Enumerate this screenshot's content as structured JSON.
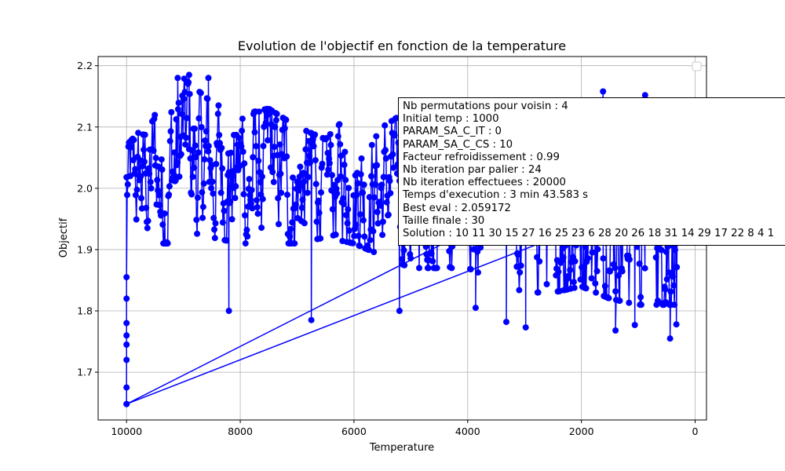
{
  "chart_data": {
    "type": "line",
    "title": "Evolution de l'objectif en fonction de la temperature",
    "xlabel": "Temperature",
    "ylabel": "Objectif",
    "xlim": [
      10500,
      -200
    ],
    "ylim": [
      1.622,
      2.215
    ],
    "x_inverted": true,
    "grid": true,
    "marker": "circle",
    "xticks": [
      10000,
      8000,
      6000,
      4000,
      2000,
      0
    ],
    "yticks": [
      1.7,
      1.8,
      1.9,
      2.0,
      2.1,
      2.2
    ],
    "series": [
      {
        "color": "#0000ff",
        "x_start": 10000,
        "x_end": 300,
        "samples": 900,
        "band": [
          [
            10000,
            1.92,
            2.06
          ],
          [
            9500,
            1.92,
            2.11
          ],
          [
            9000,
            1.92,
            2.17
          ],
          [
            8500,
            1.93,
            2.13
          ],
          [
            8000,
            1.92,
            2.11
          ],
          [
            7500,
            1.92,
            2.12
          ],
          [
            7000,
            1.92,
            2.09
          ],
          [
            6500,
            1.93,
            2.07
          ],
          [
            6000,
            1.92,
            2.12
          ],
          [
            5500,
            1.9,
            2.09
          ],
          [
            5000,
            1.88,
            2.12
          ],
          [
            4500,
            1.88,
            2.13
          ],
          [
            4000,
            1.88,
            2.13
          ],
          [
            3500,
            1.86,
            2.08
          ],
          [
            3000,
            1.84,
            2.12
          ],
          [
            2500,
            1.84,
            2.1
          ],
          [
            2000,
            1.85,
            2.12
          ],
          [
            1500,
            1.83,
            2.14
          ],
          [
            1000,
            1.82,
            2.12
          ],
          [
            500,
            1.82,
            2.09
          ],
          [
            300,
            1.82,
            2.0
          ]
        ],
        "outliers": [
          [
            10000,
            1.648
          ],
          [
            10000,
            1.675
          ],
          [
            10000,
            1.72
          ],
          [
            10000,
            1.745
          ],
          [
            10000,
            1.76
          ],
          [
            10000,
            1.78
          ],
          [
            10000,
            1.82
          ],
          [
            10000,
            1.855
          ],
          [
            9100,
            2.18
          ],
          [
            8900,
            2.185
          ],
          [
            8560,
            2.18
          ],
          [
            8200,
            1.8
          ],
          [
            6750,
            1.785
          ],
          [
            5200,
            1.8
          ],
          [
            3860,
            1.805
          ],
          [
            3320,
            1.782
          ],
          [
            2980,
            1.773
          ],
          [
            1400,
            1.768
          ],
          [
            1060,
            1.777
          ],
          [
            440,
            1.755
          ],
          [
            330,
            1.778
          ],
          [
            1620,
            2.158
          ],
          [
            880,
            2.152
          ]
        ],
        "final_point": [
          10000,
          1.648
        ],
        "closing_segment_to": [
          4000,
          1.93
        ]
      }
    ]
  },
  "annotation": {
    "lines": [
      "Nb permutations pour voisin : 4",
      "Initial temp : 1000",
      "PARAM_SA_C_IT : 0",
      "PARAM_SA_C_CS : 10",
      "Facteur refroidissement : 0.99",
      "Nb iteration par palier : 24",
      "Nb iteration effectuees : 20000",
      "Temps d'execution : 3 min 43.583 s",
      "Best eval : 2.059172",
      "Taille finale : 30",
      "Solution : 10 11 30 15 27 16 25 23 6 28 20 26 18 31 14 29 17 22 8 4 1"
    ]
  }
}
